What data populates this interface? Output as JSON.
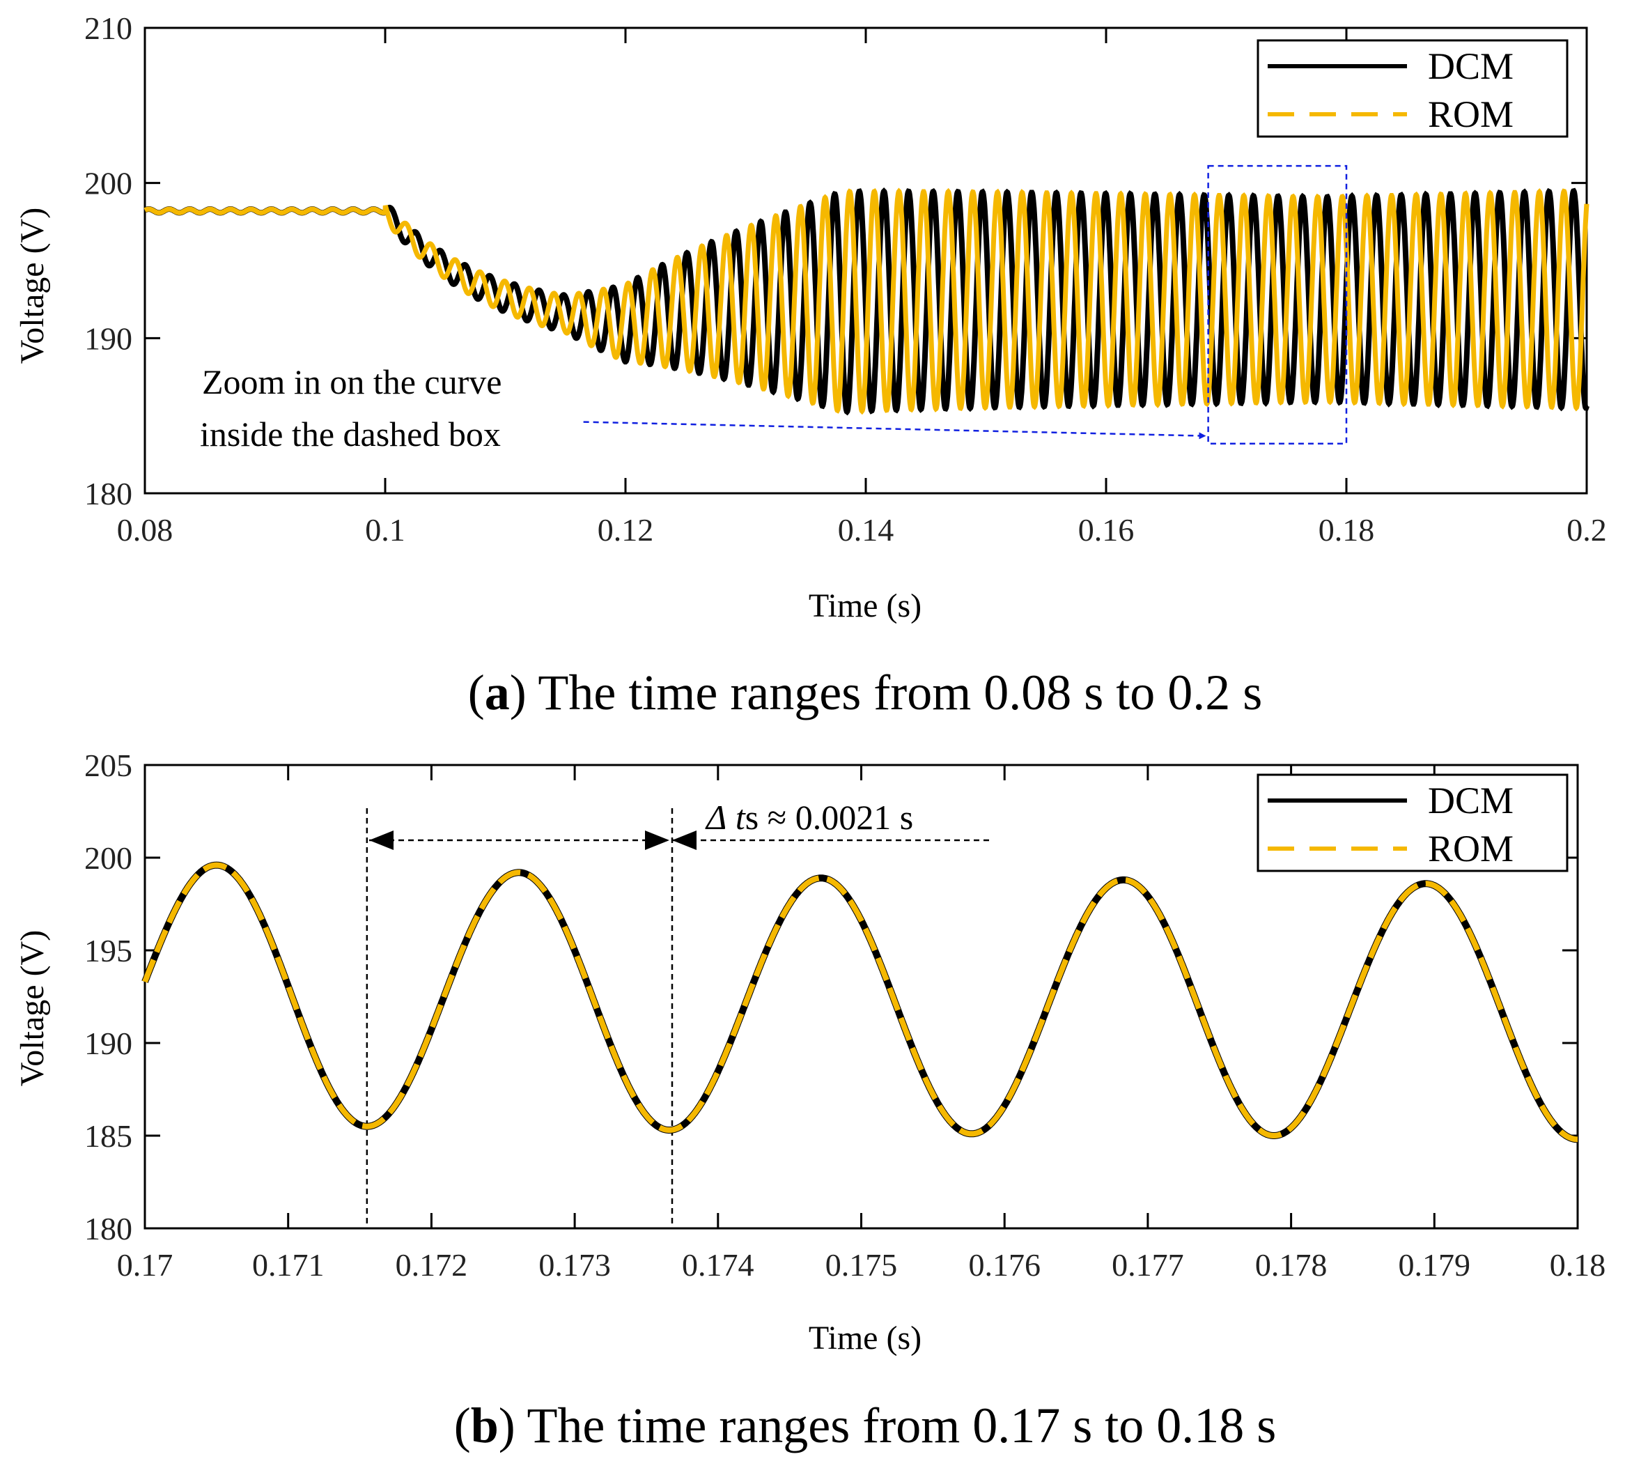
{
  "colors": {
    "dcm": "#000000",
    "rom": "#F5B800",
    "zoom": "#1020E0",
    "axis": "#000000"
  },
  "chart_data": [
    {
      "type": "line",
      "panel": "a",
      "caption_label": "a",
      "caption_text": "The time ranges from 0.08 s to 0.2 s",
      "xlabel": "Time (s)",
      "ylabel": "Voltage (V)",
      "xlim": [
        0.08,
        0.2
      ],
      "ylim": [
        180,
        210
      ],
      "xticks": [
        0.08,
        0.1,
        0.12,
        0.14,
        0.16,
        0.18,
        0.2
      ],
      "xtick_labels": [
        "0.08",
        "0.1",
        "0.12",
        "0.14",
        "0.16",
        "0.18",
        "0.2"
      ],
      "yticks": [
        180,
        190,
        200,
        210
      ],
      "ytick_labels": [
        "180",
        "190",
        "200",
        "210"
      ],
      "legend": [
        "DCM",
        "ROM"
      ],
      "legend_position": "top-right",
      "annotation": {
        "lines": [
          "Zoom in on the curve",
          "inside the dashed box"
        ]
      },
      "zoom_box": {
        "x": [
          0.1685,
          0.18
        ],
        "y": [
          183.2,
          201.1
        ]
      },
      "zoom_arrow": {
        "from": [
          0.1165,
          184.6
        ],
        "to": [
          0.1682,
          183.7
        ]
      },
      "signal_model": {
        "steady_value": 198.2,
        "disturbance_start": 0.1,
        "dip_center_value": 190.2,
        "oscillation_period": 0.00205,
        "envelope_peak_amplitude": 7.1,
        "late_amplitude": 7.0,
        "rom_phase_shift": 0.0008
      },
      "series": [
        {
          "name": "DCM",
          "style": "solid"
        },
        {
          "name": "ROM",
          "style": "dashed"
        }
      ]
    },
    {
      "type": "line",
      "panel": "b",
      "caption_label": "b",
      "caption_text": "The time ranges from 0.17 s to 0.18 s",
      "xlabel": "Time (s)",
      "ylabel": "Voltage (V)",
      "xlim": [
        0.17,
        0.18
      ],
      "ylim": [
        180,
        205
      ],
      "xticks": [
        0.17,
        0.171,
        0.172,
        0.173,
        0.174,
        0.175,
        0.176,
        0.177,
        0.178,
        0.179,
        0.18
      ],
      "xtick_labels": [
        "0.17",
        "0.171",
        "0.172",
        "0.173",
        "0.174",
        "0.175",
        "0.176",
        "0.177",
        "0.178",
        "0.179",
        "0.18"
      ],
      "yticks": [
        180,
        185,
        190,
        195,
        200,
        205
      ],
      "ytick_labels": [
        "180",
        "185",
        "190",
        "195",
        "200",
        "205"
      ],
      "legend": [
        "DCM",
        "ROM"
      ],
      "legend_position": "top-right",
      "peaks": [
        [
          0.1705,
          199.6
        ],
        [
          0.17261,
          199.2
        ],
        [
          0.17472,
          198.9
        ],
        [
          0.17683,
          198.8
        ],
        [
          0.17894,
          198.6
        ]
      ],
      "troughs": [
        [
          0.17155,
          185.5
        ],
        [
          0.17366,
          185.3
        ],
        [
          0.17577,
          185.1
        ],
        [
          0.17788,
          185.0
        ],
        [
          0.18,
          184.8
        ]
      ],
      "start_value": 193.3,
      "marker_lines_x": [
        0.17155,
        0.17368
      ],
      "delta_annotation": {
        "delta": "Δ",
        "t": "t",
        "sub": "s",
        "approx": "≈",
        "value": "0.0021 s"
      },
      "series": [
        {
          "name": "DCM",
          "style": "solid"
        },
        {
          "name": "ROM",
          "style": "dashed"
        }
      ]
    }
  ]
}
